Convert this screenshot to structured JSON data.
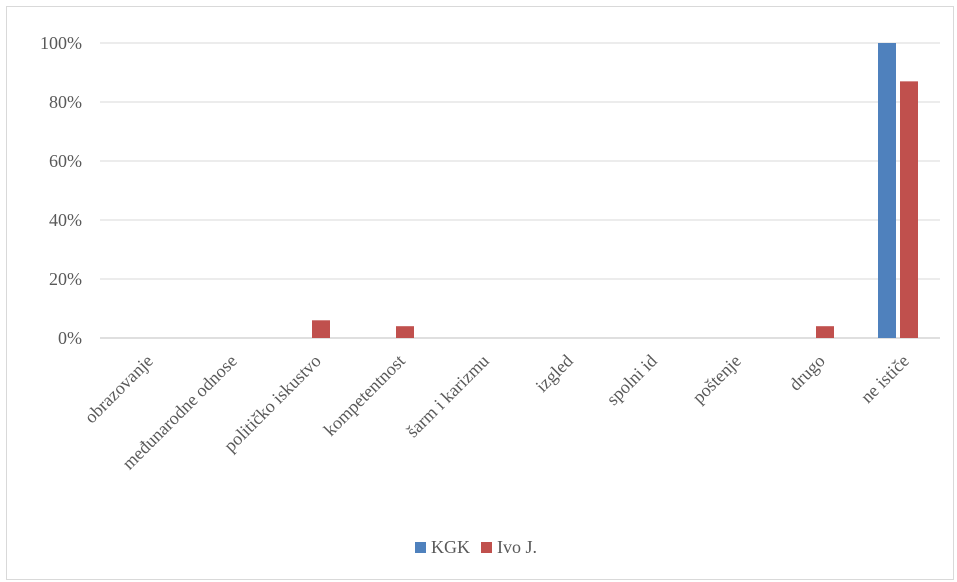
{
  "chart_data": {
    "type": "bar",
    "categories": [
      "obrazovanje",
      "međunarodne odnose",
      "političko iskustvo",
      "kompetentnost",
      "šarm i karizmu",
      "izgled",
      "spolni id",
      "poštenje",
      "drugo",
      "ne ističe"
    ],
    "series": [
      {
        "name": "KGK",
        "color": "#4f81bd",
        "values": [
          0,
          0,
          0,
          0,
          0,
          0,
          0,
          0,
          0,
          100
        ]
      },
      {
        "name": "Ivo J.",
        "color": "#c0504d",
        "values": [
          0,
          0,
          6,
          4,
          0,
          0,
          0,
          0,
          4,
          87
        ]
      }
    ],
    "yticks": [
      "0%",
      "20%",
      "40%",
      "60%",
      "80%",
      "100%"
    ],
    "ylim": [
      0,
      100
    ],
    "grid": true,
    "legend_position": "bottom"
  }
}
